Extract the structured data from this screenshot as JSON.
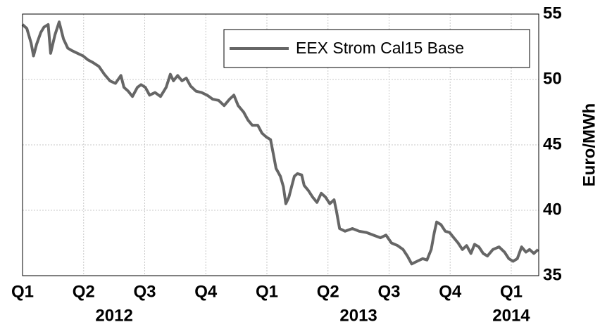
{
  "chart_data": {
    "type": "line",
    "ylabel": "Euro/MWh",
    "y_axis_side": "right",
    "grid": true,
    "legend": "upper right",
    "xlim": [
      0,
      8.45
    ],
    "xticks": [
      {
        "value": 0,
        "label": "Q1"
      },
      {
        "value": 1,
        "label": "Q2"
      },
      {
        "value": 2,
        "label": "Q3"
      },
      {
        "value": 3,
        "label": "Q4"
      },
      {
        "value": 4,
        "label": "Q1"
      },
      {
        "value": 5,
        "label": "Q2"
      },
      {
        "value": 6,
        "label": "Q3"
      },
      {
        "value": 7,
        "label": "Q4"
      },
      {
        "value": 8,
        "label": "Q1"
      }
    ],
    "year_labels": [
      {
        "value": 1.5,
        "label": "2012"
      },
      {
        "value": 5.5,
        "label": "2013"
      },
      {
        "value": 8,
        "label": "2014"
      }
    ],
    "ylim": [
      35,
      55
    ],
    "yticks": [
      35,
      40,
      45,
      50,
      55
    ],
    "x": [
      0,
      0.07,
      0.14,
      0.18,
      0.23,
      0.3,
      0.35,
      0.42,
      0.46,
      0.53,
      0.6,
      0.67,
      0.74,
      0.81,
      0.9,
      0.99,
      1.07,
      1.15,
      1.25,
      1.34,
      1.43,
      1.52,
      1.61,
      1.66,
      1.73,
      1.8,
      1.88,
      1.94,
      2.01,
      2.08,
      2.17,
      2.26,
      2.35,
      2.42,
      2.47,
      2.54,
      2.61,
      2.68,
      2.75,
      2.84,
      2.93,
      3.02,
      3.11,
      3.21,
      3.3,
      3.39,
      3.46,
      3.53,
      3.62,
      3.69,
      3.76,
      3.85,
      3.92,
      3.99,
      4.06,
      4.11,
      4.15,
      4.22,
      4.27,
      4.31,
      4.36,
      4.41,
      4.45,
      4.5,
      4.57,
      4.61,
      4.68,
      4.75,
      4.82,
      4.89,
      4.96,
      5.03,
      5.1,
      5.14,
      5.19,
      5.28,
      5.4,
      5.51,
      5.63,
      5.74,
      5.86,
      5.95,
      6.04,
      6.14,
      6.23,
      6.3,
      6.37,
      6.46,
      6.55,
      6.62,
      6.69,
      6.74,
      6.78,
      6.85,
      6.92,
      6.99,
      7.06,
      7.13,
      7.2,
      7.27,
      7.34,
      7.4,
      7.47,
      7.54,
      7.61,
      7.7,
      7.8,
      7.89,
      7.96,
      8.03,
      8.1,
      8.17,
      8.24,
      8.3,
      8.37,
      8.44
    ],
    "series": [
      {
        "name": "EEX Strom Cal15 Base",
        "color": "#666666",
        "values": [
          54.2,
          53.9,
          52.8,
          51.8,
          52.7,
          53.6,
          54.0,
          54.2,
          52.0,
          53.4,
          54.4,
          53.1,
          52.4,
          52.2,
          52.0,
          51.8,
          51.5,
          51.3,
          51.0,
          50.4,
          49.9,
          49.7,
          50.3,
          49.4,
          49.1,
          48.7,
          49.4,
          49.6,
          49.4,
          48.8,
          49.0,
          48.7,
          49.4,
          50.4,
          49.9,
          50.3,
          49.9,
          50.1,
          49.5,
          49.1,
          49.0,
          48.8,
          48.5,
          48.4,
          48.0,
          48.5,
          48.8,
          48.0,
          47.5,
          46.9,
          46.5,
          46.5,
          45.9,
          45.6,
          45.4,
          44.2,
          43.2,
          42.6,
          41.8,
          40.5,
          41.0,
          41.9,
          42.6,
          42.8,
          42.7,
          41.9,
          41.5,
          41.0,
          40.6,
          41.3,
          41.0,
          40.5,
          40.8,
          39.9,
          38.6,
          38.4,
          38.6,
          38.4,
          38.3,
          38.1,
          37.9,
          38.1,
          37.5,
          37.3,
          37.0,
          36.5,
          35.9,
          36.1,
          36.3,
          36.2,
          37.0,
          38.3,
          39.1,
          38.9,
          38.4,
          38.3,
          37.9,
          37.5,
          37.0,
          37.3,
          36.7,
          37.4,
          37.2,
          36.7,
          36.5,
          37.0,
          37.2,
          36.8,
          36.3,
          36.1,
          36.3,
          37.2,
          36.8,
          37.0,
          36.7,
          37.0
        ]
      }
    ]
  }
}
